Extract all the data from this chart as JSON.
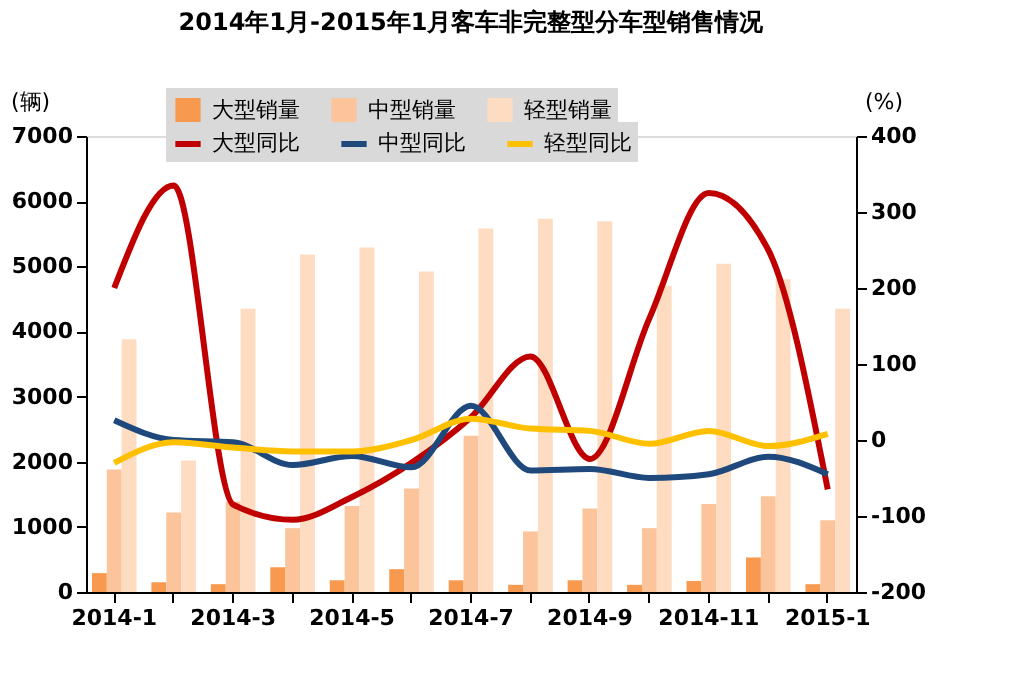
{
  "chart_data": {
    "type": "bar",
    "title": "2014年1月-2015年1月客车非完整型分车型销售情况",
    "ylabel": "(辆)",
    "y2label": "(%)",
    "categories": [
      "2014-1",
      null,
      "2014-3",
      null,
      "2014-5",
      null,
      "2014-7",
      null,
      "2014-9",
      null,
      "2014-11",
      null,
      "2015-1"
    ],
    "series": [
      {
        "name": "大型销量",
        "color": "#f79a50",
        "values": [
          290,
          150,
          120,
          380,
          180,
          350,
          180,
          110,
          180,
          110,
          170,
          530,
          120
        ]
      },
      {
        "name": "中型销量",
        "color": "#fbc49a",
        "values": [
          1880,
          1220,
          1390,
          980,
          1320,
          1590,
          2400,
          930,
          1280,
          980,
          1350,
          1470,
          1100
        ]
      },
      {
        "name": "轻型销量",
        "color": "#fddcc2",
        "values": [
          3880,
          2020,
          4350,
          5180,
          5290,
          4920,
          5580,
          5730,
          5690,
          4700,
          5040,
          4800,
          4350
        ]
      },
      {
        "name": "大型同比",
        "type": "line",
        "axis": "y2",
        "color": "#c00000",
        "values": [
          200,
          335,
          -85,
          -105,
          -75,
          -30,
          30,
          110,
          -25,
          160,
          325,
          250,
          -65
        ]
      },
      {
        "name": "中型同比",
        "type": "line",
        "axis": "y2",
        "color": "#1f497d",
        "values": [
          26,
          0,
          -3,
          -33,
          -21,
          -36,
          45,
          -40,
          -38,
          -50,
          -45,
          -22,
          -45
        ]
      },
      {
        "name": "轻型同比",
        "type": "line",
        "axis": "y2",
        "color": "#ffc000",
        "values": [
          -30,
          -3,
          -10,
          -15,
          -15,
          0,
          28,
          15,
          12,
          -5,
          12,
          -8,
          8
        ]
      }
    ],
    "ylim": [
      0,
      7000
    ],
    "yticks": [
      0,
      1000,
      2000,
      3000,
      4000,
      5000,
      6000,
      7000
    ],
    "y2lim": [
      -200,
      400
    ],
    "y2ticks": [
      -200,
      -100,
      0,
      100,
      200,
      300,
      400
    ],
    "grid": false,
    "legend": "top",
    "marker": "none",
    "line_style": "solid"
  }
}
